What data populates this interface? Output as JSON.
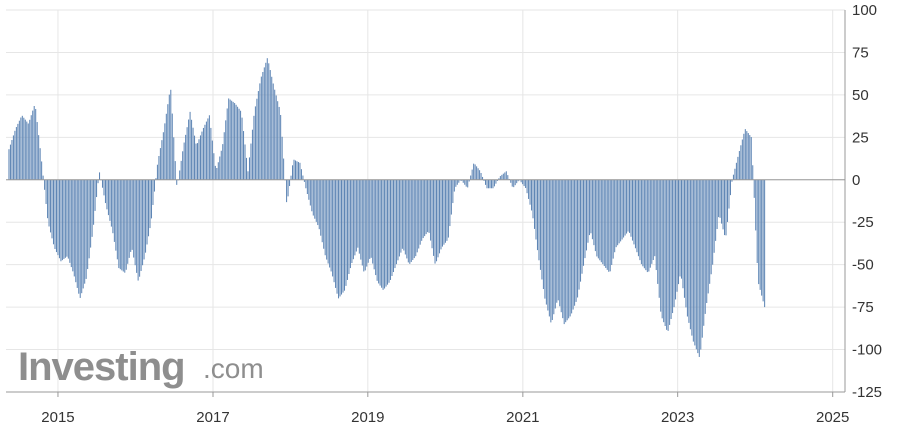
{
  "watermark": {
    "brand": "Investing",
    "suffix": ".com"
  },
  "colors": {
    "bar": "#5f86b5",
    "bar_stroke": "#4a6f9c",
    "grid": "#e6e6e6",
    "axis": "#999999",
    "background": "#ffffff"
  },
  "chart_data": {
    "type": "bar",
    "title": "",
    "xlabel": "",
    "ylabel": "",
    "ylim": [
      -125,
      100
    ],
    "y_ticks": [
      100,
      75,
      50,
      25,
      0,
      -25,
      -50,
      -75,
      -100,
      -125
    ],
    "y_tick_labels": [
      "100",
      "75",
      "50",
      "25",
      "0",
      "-25",
      "-50",
      "-75",
      "-100",
      "-125"
    ],
    "x_range": [
      "2014-05-01",
      "2025-02-28"
    ],
    "x_ticks": [
      "2015-01-01",
      "2017-01-01",
      "2019-01-01",
      "2021-01-01",
      "2023-01-01",
      "2025-01-01"
    ],
    "x_tick_labels": [
      "2015",
      "2017",
      "2019",
      "2021",
      "2023",
      "2025"
    ],
    "axis_position": "right",
    "grid": true,
    "series": [
      {
        "values": [
          [
            "2014-05",
            18
          ],
          [
            "2014-06",
            30
          ],
          [
            "2014-07",
            38
          ],
          [
            "2014-08",
            33
          ],
          [
            "2014-09",
            45
          ],
          [
            "2014-10",
            12
          ],
          [
            "2014-11",
            -25
          ],
          [
            "2014-12",
            -40
          ],
          [
            "2015-01",
            -48
          ],
          [
            "2015-02",
            -45
          ],
          [
            "2015-03",
            -55
          ],
          [
            "2015-04",
            -70
          ],
          [
            "2015-05",
            -58
          ],
          [
            "2015-06",
            -30
          ],
          [
            "2015-07",
            5
          ],
          [
            "2015-08",
            -15
          ],
          [
            "2015-09",
            -30
          ],
          [
            "2015-10",
            -52
          ],
          [
            "2015-11",
            -55
          ],
          [
            "2015-12",
            -40
          ],
          [
            "2016-01",
            -60
          ],
          [
            "2016-02",
            -45
          ],
          [
            "2016-03",
            -25
          ],
          [
            "2016-04",
            10
          ],
          [
            "2016-05",
            30
          ],
          [
            "2016-06",
            55
          ],
          [
            "2016-07",
            -5
          ],
          [
            "2016-08",
            20
          ],
          [
            "2016-09",
            40
          ],
          [
            "2016-10",
            20
          ],
          [
            "2016-11",
            30
          ],
          [
            "2016-12",
            38
          ],
          [
            "2017-01",
            5
          ],
          [
            "2017-02",
            20
          ],
          [
            "2017-03",
            48
          ],
          [
            "2017-04",
            45
          ],
          [
            "2017-05",
            40
          ],
          [
            "2017-06",
            5
          ],
          [
            "2017-07",
            40
          ],
          [
            "2017-08",
            60
          ],
          [
            "2017-09",
            72
          ],
          [
            "2017-10",
            55
          ],
          [
            "2017-11",
            40
          ],
          [
            "2017-12",
            -15
          ],
          [
            "2018-01",
            12
          ],
          [
            "2018-02",
            10
          ],
          [
            "2018-03",
            -5
          ],
          [
            "2018-04",
            -20
          ],
          [
            "2018-05",
            -28
          ],
          [
            "2018-06",
            -45
          ],
          [
            "2018-07",
            -55
          ],
          [
            "2018-08",
            -70
          ],
          [
            "2018-09",
            -65
          ],
          [
            "2018-10",
            -50
          ],
          [
            "2018-11",
            -40
          ],
          [
            "2018-12",
            -55
          ],
          [
            "2019-01",
            -45
          ],
          [
            "2019-02",
            -60
          ],
          [
            "2019-03",
            -65
          ],
          [
            "2019-04",
            -60
          ],
          [
            "2019-05",
            -50
          ],
          [
            "2019-06",
            -40
          ],
          [
            "2019-07",
            -50
          ],
          [
            "2019-08",
            -45
          ],
          [
            "2019-09",
            -35
          ],
          [
            "2019-10",
            -30
          ],
          [
            "2019-11",
            -50
          ],
          [
            "2019-12",
            -40
          ],
          [
            "2020-01",
            -35
          ],
          [
            "2020-02",
            -5
          ],
          [
            "2020-03",
            0
          ],
          [
            "2020-04",
            -5
          ],
          [
            "2020-05",
            10
          ],
          [
            "2020-06",
            5
          ],
          [
            "2020-07",
            -5
          ],
          [
            "2020-08",
            -5
          ],
          [
            "2020-09",
            2
          ],
          [
            "2020-10",
            5
          ],
          [
            "2020-11",
            -5
          ],
          [
            "2020-12",
            0
          ],
          [
            "2021-01",
            -5
          ],
          [
            "2021-02",
            -20
          ],
          [
            "2021-03",
            -45
          ],
          [
            "2021-04",
            -70
          ],
          [
            "2021-05",
            -85
          ],
          [
            "2021-06",
            -70
          ],
          [
            "2021-07",
            -85
          ],
          [
            "2021-08",
            -80
          ],
          [
            "2021-09",
            -70
          ],
          [
            "2021-10",
            -50
          ],
          [
            "2021-11",
            -30
          ],
          [
            "2021-12",
            -45
          ],
          [
            "2022-01",
            -50
          ],
          [
            "2022-02",
            -55
          ],
          [
            "2022-03",
            -40
          ],
          [
            "2022-04",
            -35
          ],
          [
            "2022-05",
            -30
          ],
          [
            "2022-06",
            -40
          ],
          [
            "2022-07",
            -50
          ],
          [
            "2022-08",
            -55
          ],
          [
            "2022-09",
            -45
          ],
          [
            "2022-10",
            -80
          ],
          [
            "2022-11",
            -90
          ],
          [
            "2022-12",
            -75
          ],
          [
            "2023-01",
            -55
          ],
          [
            "2023-02",
            -80
          ],
          [
            "2023-03",
            -95
          ],
          [
            "2023-04",
            -105
          ],
          [
            "2023-05",
            -75
          ],
          [
            "2023-06",
            -50
          ],
          [
            "2023-07",
            -20
          ],
          [
            "2023-08",
            -35
          ],
          [
            "2023-09",
            0
          ],
          [
            "2023-10",
            15
          ],
          [
            "2023-11",
            30
          ],
          [
            "2023-12",
            25
          ],
          [
            "2024-01",
            -60
          ],
          [
            "2024-02",
            -75
          ]
        ]
      }
    ]
  }
}
